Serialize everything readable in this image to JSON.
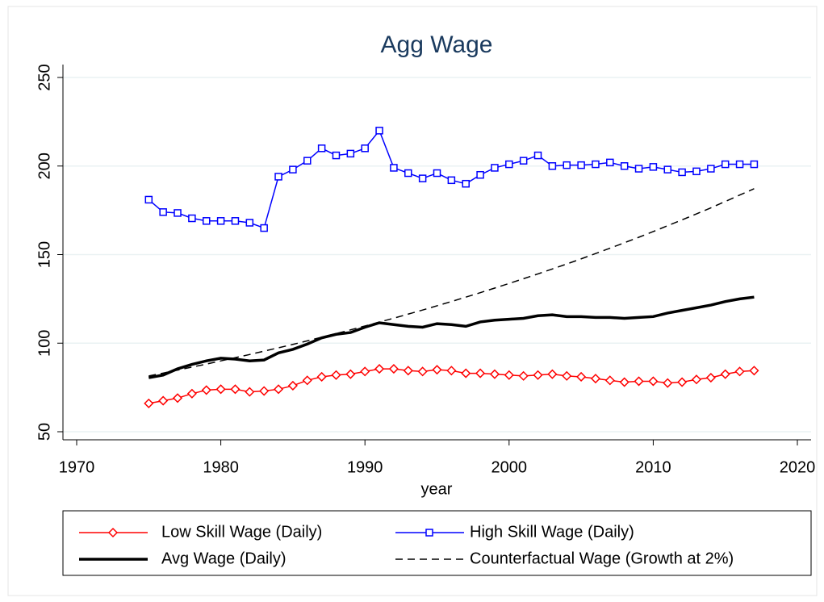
{
  "chart_data": {
    "type": "line",
    "title": "Agg Wage",
    "x_label": "year",
    "x": [
      1975,
      1976,
      1977,
      1978,
      1979,
      1980,
      1981,
      1982,
      1983,
      1984,
      1985,
      1986,
      1987,
      1988,
      1989,
      1990,
      1991,
      1992,
      1993,
      1994,
      1995,
      1996,
      1997,
      1998,
      1999,
      2000,
      2001,
      2002,
      2003,
      2004,
      2005,
      2006,
      2007,
      2008,
      2009,
      2010,
      2011,
      2012,
      2013,
      2014,
      2015,
      2016,
      2017
    ],
    "series": [
      {
        "name": "Low Skill Wage (Daily)",
        "color": "#ff0000",
        "marker": "diamond",
        "width": 1.5,
        "dash": false,
        "values": [
          66,
          67.5,
          69,
          71.5,
          73.5,
          74,
          74,
          72.5,
          73,
          74,
          76,
          79,
          81,
          82,
          82.5,
          84,
          85.5,
          85.5,
          84.5,
          84,
          85,
          84.5,
          83,
          83,
          82.5,
          82,
          81.5,
          82,
          82.5,
          81.5,
          81,
          80,
          79,
          78,
          78.5,
          78.5,
          77.5,
          78,
          79.5,
          80.5,
          82.5,
          84,
          84.5
        ]
      },
      {
        "name": "High Skill Wage (Daily)",
        "color": "#0000ff",
        "marker": "square",
        "width": 1.5,
        "dash": false,
        "values": [
          181,
          174,
          173.5,
          170.5,
          169,
          169,
          169,
          168,
          165,
          194,
          198,
          203,
          210,
          206,
          207,
          210,
          220,
          199,
          196,
          193,
          196,
          192,
          190,
          195,
          199,
          201,
          203,
          206,
          200,
          200.5,
          200.5,
          201,
          202,
          200,
          198.5,
          199.5,
          198,
          196.5,
          197,
          198.5,
          201,
          201,
          201
        ]
      },
      {
        "name": "Avg Wage (Daily)",
        "color": "#000000",
        "marker": null,
        "width": 3.5,
        "dash": false,
        "values": [
          80.5,
          82,
          85.5,
          88,
          90,
          91.5,
          91,
          90,
          90.5,
          94.5,
          96.5,
          99.5,
          103,
          105,
          106,
          109,
          111.5,
          110.5,
          109.5,
          109,
          111,
          110.5,
          109.5,
          112,
          113,
          113.5,
          114,
          115.5,
          116,
          115,
          115,
          114.5,
          114.5,
          114,
          114.5,
          115,
          117,
          118.5,
          120,
          121.5,
          123.5,
          125,
          126
        ]
      },
      {
        "name": "Counterfactual Wage (Growth at 2%)",
        "color": "#000000",
        "marker": null,
        "width": 1.5,
        "dash": true,
        "values": [
          81.5,
          83.1,
          84.8,
          86.5,
          88.2,
          90.0,
          91.8,
          93.6,
          95.5,
          97.4,
          99.3,
          101.3,
          103.4,
          105.4,
          107.5,
          109.7,
          111.9,
          114.1,
          116.4,
          118.7,
          121.1,
          123.5,
          126.0,
          128.5,
          131.1,
          133.7,
          136.4,
          139.1,
          141.9,
          144.7,
          147.6,
          150.6,
          153.6,
          156.7,
          159.8,
          163.0,
          166.3,
          169.6,
          173.0,
          176.4,
          180.0,
          183.6,
          187.2
        ]
      }
    ],
    "xlim": [
      1970,
      2020
    ],
    "xticks": [
      1970,
      1980,
      1990,
      2000,
      2010,
      2020
    ],
    "ylim": [
      50,
      250
    ],
    "yticks": [
      50,
      100,
      150,
      200,
      250
    ],
    "grid": true,
    "legend": "bottom"
  }
}
